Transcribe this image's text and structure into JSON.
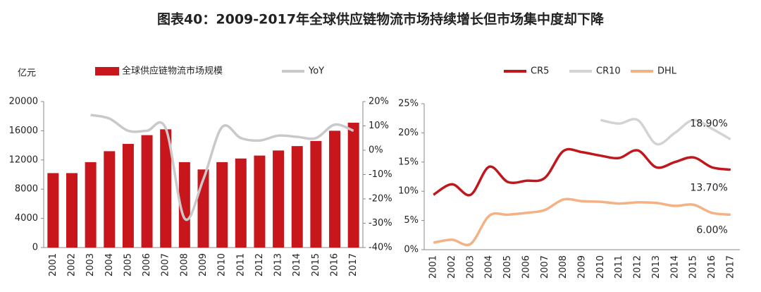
{
  "title": "图表40：2009-2017年全球供应链物流市场持续增长但市场集中度却下降",
  "chart_data": [
    {
      "type": "bar",
      "y_label": "亿元",
      "categories": [
        "2001",
        "2002",
        "2003",
        "2004",
        "2005",
        "2006",
        "2007",
        "2008",
        "2009",
        "2010",
        "2011",
        "2012",
        "2013",
        "2014",
        "2015",
        "2016",
        "2017"
      ],
      "series": [
        {
          "name": "全球供应链物流市场规模",
          "type": "bar",
          "color": "#c8161d",
          "values": [
            10200,
            10200,
            11700,
            13200,
            14200,
            15400,
            16200,
            11700,
            10700,
            11700,
            12200,
            12600,
            13300,
            13900,
            14600,
            16000,
            17100
          ]
        },
        {
          "name": "YoY",
          "type": "line",
          "axis": "y2",
          "color": "#c9c9c9",
          "values": [
            null,
            null,
            14.5,
            13,
            8,
            8,
            9,
            -28,
            -12,
            9.5,
            5,
            4,
            6,
            5.5,
            5,
            10.5,
            8
          ]
        }
      ],
      "ylim": [
        0,
        20000
      ],
      "yticks": [
        0,
        4000,
        8000,
        12000,
        16000,
        20000
      ],
      "y2lim": [
        -40,
        20
      ],
      "y2ticks": [
        {
          "value": 20,
          "label": "20%"
        },
        {
          "value": 10,
          "label": "10%"
        },
        {
          "value": 0,
          "label": "0%"
        },
        {
          "value": -10,
          "label": "-10%"
        },
        {
          "value": -20,
          "label": "-20%"
        },
        {
          "value": -30,
          "label": "-30%"
        },
        {
          "value": -40,
          "label": "-40%"
        }
      ]
    },
    {
      "type": "line",
      "categories": [
        "2001",
        "2002",
        "2003",
        "2004",
        "2005",
        "2006",
        "2007",
        "2008",
        "2009",
        "2010",
        "2011",
        "2012",
        "2013",
        "2014",
        "2015",
        "2016",
        "2017"
      ],
      "series": [
        {
          "name": "CR5",
          "color": "#c0171c",
          "values": [
            9.4,
            11.2,
            9.4,
            14.2,
            11.6,
            11.8,
            12.3,
            16.9,
            16.7,
            16.1,
            15.7,
            17,
            14.1,
            15,
            15.8,
            14.1,
            13.7
          ],
          "value_labels": [
            null,
            null,
            null,
            null,
            null,
            null,
            null,
            null,
            null,
            null,
            null,
            null,
            null,
            null,
            null,
            null,
            "13.70%"
          ]
        },
        {
          "name": "CR10",
          "color": "#d3d3d3",
          "values": [
            null,
            null,
            null,
            null,
            null,
            null,
            null,
            null,
            null,
            22.2,
            21.6,
            22.2,
            18.1,
            20,
            22.2,
            20.7,
            18.9
          ],
          "value_labels": [
            null,
            null,
            null,
            null,
            null,
            null,
            null,
            null,
            null,
            null,
            null,
            null,
            null,
            null,
            null,
            null,
            "18.90%"
          ]
        },
        {
          "name": "DHL",
          "color": "#f4b183",
          "values": [
            1.2,
            1.7,
            1,
            5.8,
            6,
            6.3,
            6.8,
            8.6,
            8.3,
            8.2,
            7.9,
            8.1,
            8,
            7.5,
            7.7,
            6.3,
            6
          ],
          "value_labels": [
            null,
            null,
            null,
            null,
            null,
            null,
            null,
            null,
            null,
            null,
            null,
            null,
            null,
            null,
            null,
            null,
            "6.00%"
          ]
        }
      ],
      "ylim": [
        0,
        25
      ],
      "yticks": [
        {
          "value": 0,
          "label": "0%"
        },
        {
          "value": 5,
          "label": "5%"
        },
        {
          "value": 10,
          "label": "10%"
        },
        {
          "value": 15,
          "label": "15%"
        },
        {
          "value": 20,
          "label": "20%"
        },
        {
          "value": 25,
          "label": "25%"
        }
      ]
    }
  ]
}
